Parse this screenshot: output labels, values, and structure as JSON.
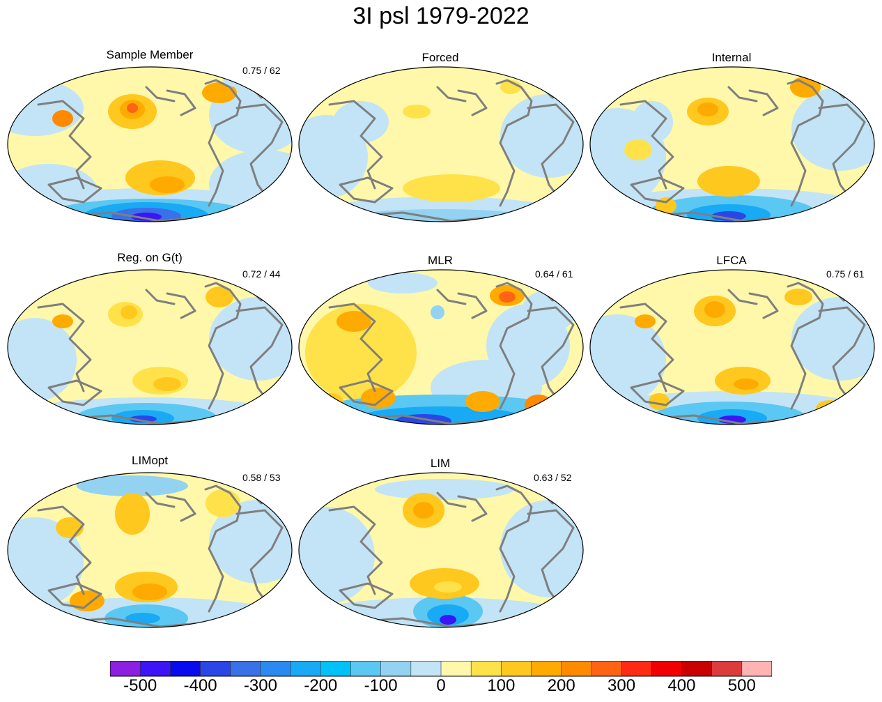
{
  "title": "3I psl 1979-2022",
  "panels": [
    {
      "title": "Sample Member",
      "stat": "0.75 / 62"
    },
    {
      "title": "Forced",
      "stat": ""
    },
    {
      "title": "Internal",
      "stat": ""
    },
    {
      "title": "Reg. on G(t)",
      "stat": "0.72 / 44"
    },
    {
      "title": "MLR",
      "stat": "0.64 / 61"
    },
    {
      "title": "LFCA",
      "stat": "0.75 / 61"
    },
    {
      "title": "LIMopt",
      "stat": "0.58 / 53"
    },
    {
      "title": "LIM",
      "stat": "0.63 / 52"
    }
  ],
  "colorbar": {
    "colors": [
      "#8c1fe0",
      "#3c14f5",
      "#0a0af0",
      "#2a46e6",
      "#3a70e8",
      "#2a8af2",
      "#18aaf5",
      "#00c2f8",
      "#5ac8f2",
      "#94d2f2",
      "#c2e4f6",
      "#fff8aa",
      "#ffe24a",
      "#ffc81e",
      "#ffaa00",
      "#ff8a00",
      "#ff6414",
      "#ff2a14",
      "#f00000",
      "#c80000",
      "#dc3c3c",
      "#ffb4b4"
    ],
    "labels": [
      "-500",
      "-400",
      "-300",
      "-200",
      "-100",
      "0",
      "100",
      "200",
      "300",
      "400",
      "500"
    ],
    "values": [
      -500,
      -400,
      -300,
      -200,
      -100,
      0,
      100,
      200,
      300,
      400,
      500
    ]
  }
}
